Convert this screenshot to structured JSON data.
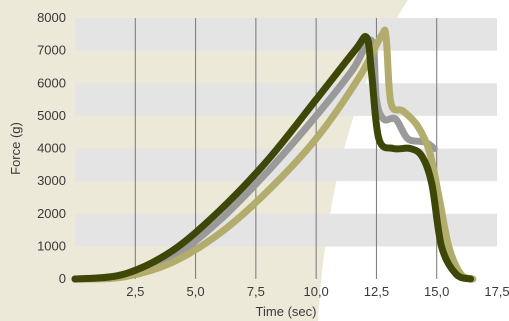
{
  "chart_data": {
    "type": "line",
    "title": "",
    "xlabel": "Time (sec)",
    "ylabel": "Force (g)",
    "xlim": [
      0,
      17.5
    ],
    "ylim": [
      0,
      8000
    ],
    "x_ticks": [
      "2,5",
      "5,0",
      "7,5",
      "10,0",
      "12,5",
      "15,0",
      "17,5"
    ],
    "x_tick_values": [
      2.5,
      5.0,
      7.5,
      10.0,
      12.5,
      15.0,
      17.5
    ],
    "y_ticks": [
      "0",
      "1000",
      "2000",
      "3000",
      "4000",
      "5000",
      "6000",
      "7000",
      "8000"
    ],
    "y_tick_values": [
      0,
      1000,
      2000,
      3000,
      4000,
      5000,
      6000,
      7000,
      8000
    ],
    "grid": "horizontal bands and vertical lines",
    "colors": {
      "background_shape": "#ece9d8",
      "band": "#e4e4e4",
      "gridline": "#777777"
    },
    "series": [
      {
        "color": "#9a9a9a",
        "points": [
          [
            0,
            0
          ],
          [
            2,
            100
          ],
          [
            4,
            650
          ],
          [
            6,
            1800
          ],
          [
            8,
            3300
          ],
          [
            10,
            5000
          ],
          [
            11.5,
            6400
          ],
          [
            12.3,
            7300
          ],
          [
            12.5,
            5500
          ],
          [
            12.8,
            4900
          ],
          [
            13.3,
            4900
          ],
          [
            13.8,
            4300
          ],
          [
            14.5,
            4200
          ],
          [
            14.9,
            4000
          ]
        ]
      },
      {
        "color": "#b2ad6c",
        "points": [
          [
            0,
            0
          ],
          [
            2,
            60
          ],
          [
            4,
            500
          ],
          [
            6,
            1400
          ],
          [
            8,
            2700
          ],
          [
            10,
            4300
          ],
          [
            11.8,
            6200
          ],
          [
            12.7,
            7450
          ],
          [
            12.9,
            7400
          ],
          [
            13.1,
            5400
          ],
          [
            13.6,
            5150
          ],
          [
            14.2,
            4700
          ],
          [
            14.7,
            3900
          ],
          [
            15.1,
            2500
          ],
          [
            15.5,
            1000
          ],
          [
            16,
            150
          ],
          [
            16.5,
            0
          ]
        ]
      },
      {
        "color": "#3e4708",
        "points": [
          [
            0,
            0
          ],
          [
            2,
            140
          ],
          [
            4,
            850
          ],
          [
            6,
            2100
          ],
          [
            8,
            3650
          ],
          [
            10,
            5500
          ],
          [
            11.6,
            7000
          ],
          [
            12.1,
            7400
          ],
          [
            12.3,
            6300
          ],
          [
            12.6,
            4300
          ],
          [
            13.2,
            4000
          ],
          [
            13.9,
            4000
          ],
          [
            14.4,
            3750
          ],
          [
            14.8,
            2900
          ],
          [
            15.2,
            1000
          ],
          [
            15.8,
            150
          ],
          [
            16.4,
            0
          ]
        ]
      }
    ]
  }
}
